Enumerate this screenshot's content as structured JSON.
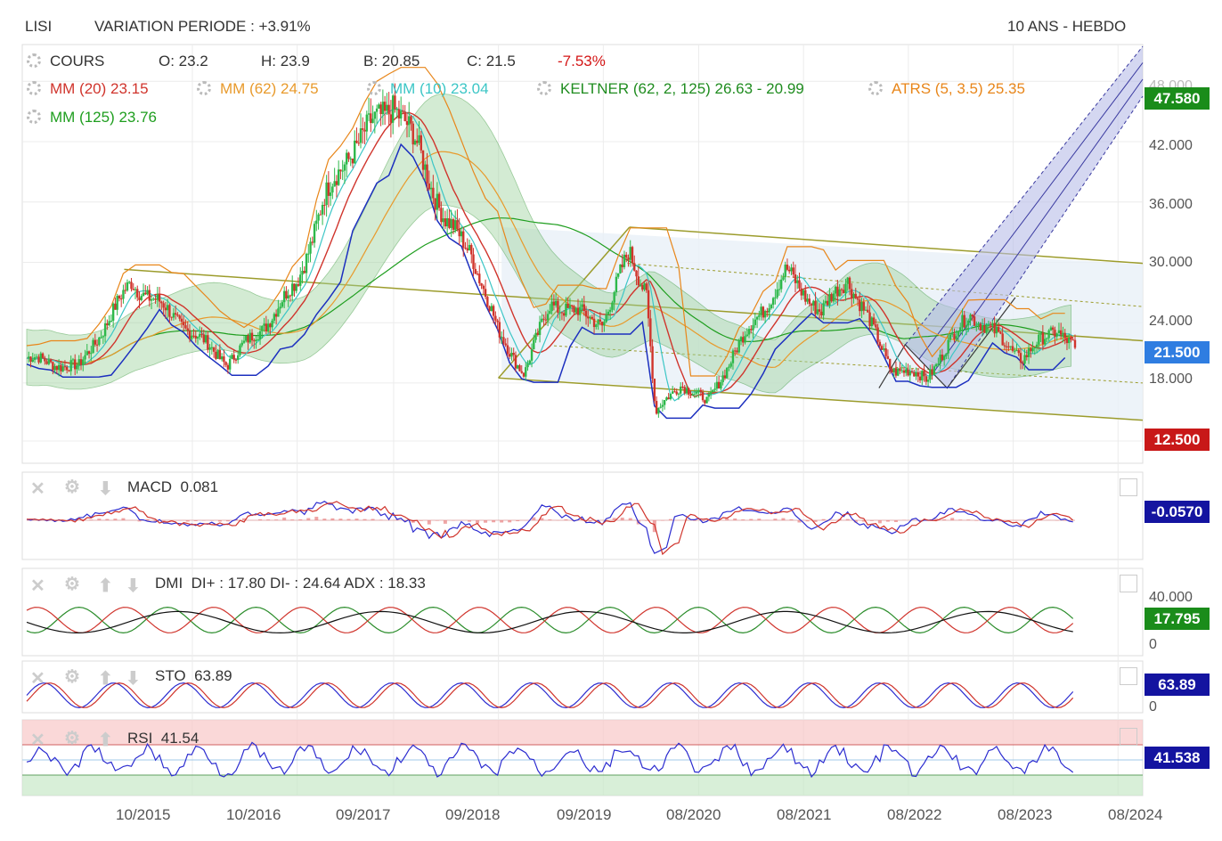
{
  "header": {
    "symbol": "LISI",
    "variation": "VARIATION PERIODE : +3.91%",
    "period": "10 ANS - HEBDO"
  },
  "legend": {
    "cours_label": "COURS",
    "open": "O: 23.2",
    "high": "H: 23.9",
    "low": "B: 20.85",
    "close": "C: 21.5",
    "change": "-7.53%",
    "mm20": "MM (20)  23.15",
    "mm62": "MM (62)  24.75",
    "mm10": "MM (10)  23.04",
    "keltner": "KELTNER (62, 2, 125)  26.63 - 20.99",
    "atrs": "ATRS (5, 3.5)  25.35",
    "mm125": "MM (125)  23.76"
  },
  "price_axis": {
    "ticks": [
      "48.000",
      "42.000",
      "36.000",
      "30.000",
      "24.000",
      "18.000"
    ],
    "tags": {
      "top": "47.580",
      "last": "21.500",
      "bottom": "12.500"
    }
  },
  "x_axis": {
    "ticks": [
      "10/2015",
      "10/2016",
      "09/2017",
      "09/2018",
      "09/2019",
      "08/2020",
      "08/2021",
      "08/2022",
      "08/2023",
      "08/2024"
    ]
  },
  "panels": {
    "macd": {
      "label": "MACD",
      "value": "0.081",
      "tag": "-0.0570"
    },
    "dmi": {
      "label": "DMI",
      "value": "DI+ : 17.80 DI- : 24.64 ADX : 18.33",
      "tick_top": "40.000",
      "tick_zero": "0",
      "tag": "17.795"
    },
    "sto": {
      "label": "STO",
      "value": "63.89",
      "tick_zero": "0",
      "tag": "63.89"
    },
    "rsi": {
      "label": "RSI",
      "value": "41.54",
      "tag": "41.538"
    }
  },
  "colors": {
    "candle_up": "#2db84a",
    "candle_down": "#d0342c",
    "mm20": "#d0342c",
    "mm62": "#e89a2c",
    "mm10": "#3cc6c6",
    "keltner": "#1f8c1f",
    "atrs": "#e8861a",
    "mm125": "#1f9e1f",
    "tag_green": "#1a8c1a",
    "tag_blue": "#2f7de1",
    "tag_red": "#c81818",
    "tag_navy": "#1414a0"
  },
  "chart_data": {
    "type": "candlestick",
    "title": "LISI",
    "frequency": "weekly",
    "range": "10 ANS",
    "ylim": [
      12.5,
      49
    ],
    "close_path": [
      {
        "x": "2014-03",
        "y": 20.5
      },
      {
        "x": "2014-09",
        "y": 19.5
      },
      {
        "x": "2015-03",
        "y": 28.0
      },
      {
        "x": "2015-06",
        "y": 26.0
      },
      {
        "x": "2015-10",
        "y": 23.0
      },
      {
        "x": "2016-02",
        "y": 20.0
      },
      {
        "x": "2016-06",
        "y": 23.5
      },
      {
        "x": "2016-10",
        "y": 28.0
      },
      {
        "x": "2017-01",
        "y": 36.0
      },
      {
        "x": "2017-04",
        "y": 41.0
      },
      {
        "x": "2017-09",
        "y": 46.0
      },
      {
        "x": "2017-12",
        "y": 41.0
      },
      {
        "x": "2018-03",
        "y": 34.0
      },
      {
        "x": "2018-06",
        "y": 31.0
      },
      {
        "x": "2018-09",
        "y": 23.0
      },
      {
        "x": "2018-12",
        "y": 19.0
      },
      {
        "x": "2019-03",
        "y": 26.0
      },
      {
        "x": "2019-06",
        "y": 25.0
      },
      {
        "x": "2019-09",
        "y": 24.0
      },
      {
        "x": "2019-12",
        "y": 31.0
      },
      {
        "x": "2020-02",
        "y": 27.0
      },
      {
        "x": "2020-03",
        "y": 15.0
      },
      {
        "x": "2020-06",
        "y": 18.0
      },
      {
        "x": "2020-09",
        "y": 16.0
      },
      {
        "x": "2020-12",
        "y": 21.0
      },
      {
        "x": "2021-06",
        "y": 29.0
      },
      {
        "x": "2021-10",
        "y": 25.0
      },
      {
        "x": "2022-01",
        "y": 28.5
      },
      {
        "x": "2022-06",
        "y": 19.5
      },
      {
        "x": "2022-10",
        "y": 18.5
      },
      {
        "x": "2023-03",
        "y": 25.0
      },
      {
        "x": "2023-09",
        "y": 20.5
      },
      {
        "x": "2024-01",
        "y": 23.5
      },
      {
        "x": "2024-03",
        "y": 21.5
      }
    ]
  }
}
